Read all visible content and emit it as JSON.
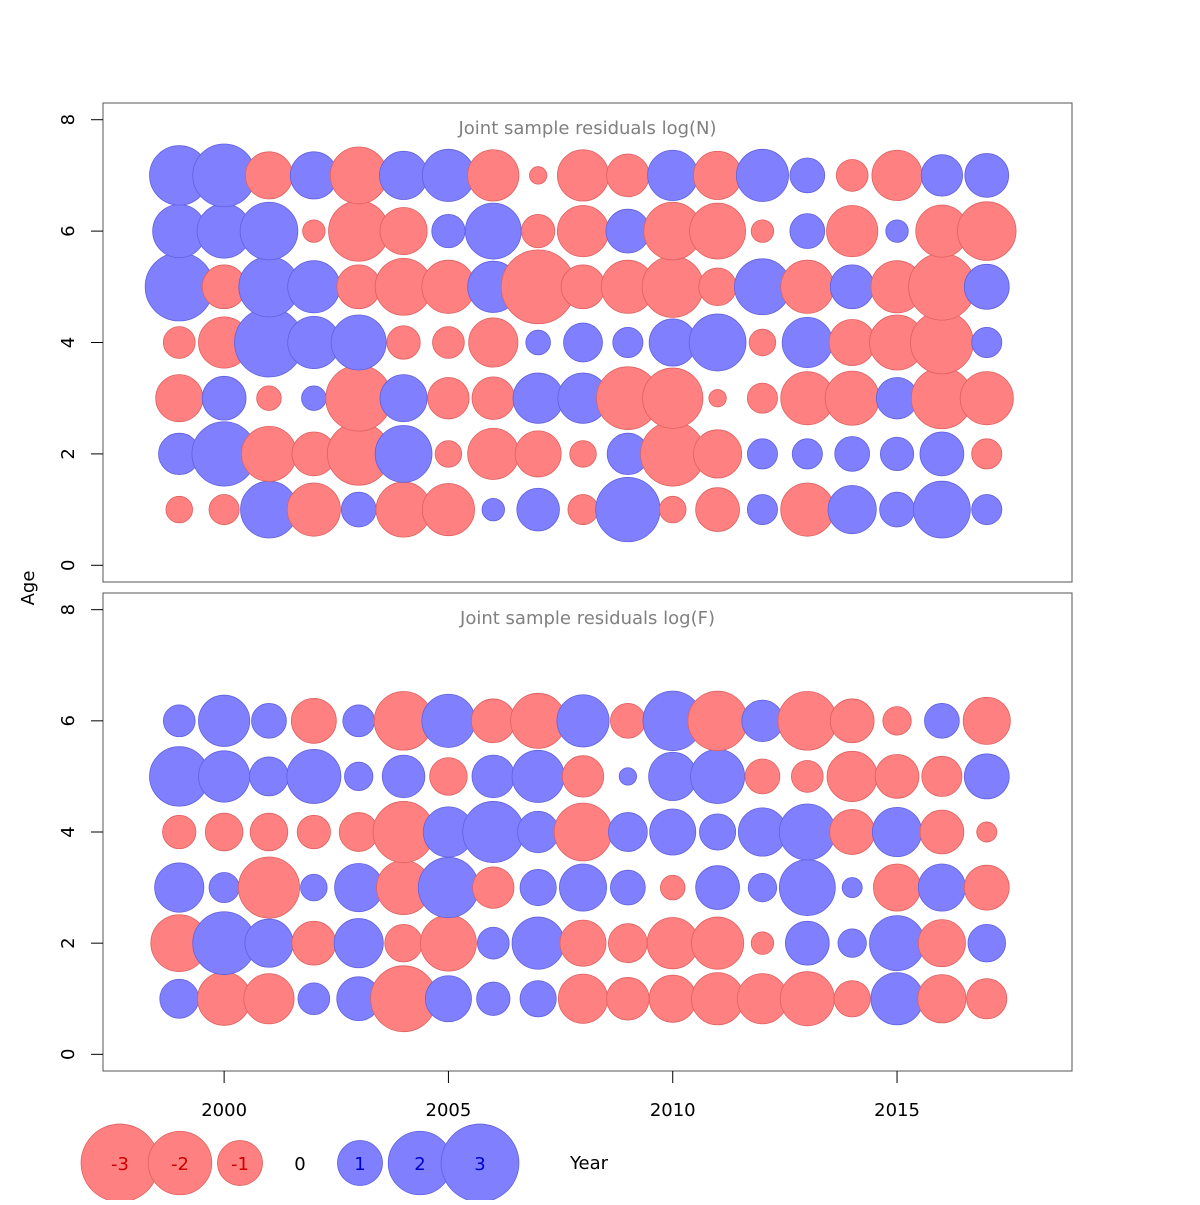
{
  "figure": {
    "ylabel": "Age",
    "xlabel": "Year"
  },
  "colors": {
    "negative": "#ff8080",
    "negative_stroke": "#e06060",
    "positive": "#8080ff",
    "positive_stroke": "#6060e0",
    "negative_legend_text": "#cc0000",
    "positive_legend_text": "#0000cc",
    "panel_border": "#555555",
    "title": "#808080"
  },
  "legend": [
    {
      "label": "-3",
      "value": -3
    },
    {
      "label": "-2",
      "value": -2
    },
    {
      "label": "-1",
      "value": -1
    },
    {
      "label": "0",
      "value": 0
    },
    {
      "label": "1",
      "value": 1
    },
    {
      "label": "2",
      "value": 2
    },
    {
      "label": "3",
      "value": 3
    }
  ],
  "chart_data": [
    {
      "type": "bubble",
      "title": "Joint sample residuals log(N)",
      "xlabel": "Year",
      "ylabel": "Age",
      "xlim": [
        1997.3,
        2018.9
      ],
      "ylim": [
        -0.3,
        8.3
      ],
      "xticks": [
        2000,
        2005,
        2010,
        2015
      ],
      "xtick_labels": [
        "2000",
        "2005",
        "2010",
        "2015"
      ],
      "show_xtick_labels": false,
      "yticks": [
        0,
        2,
        4,
        6,
        8
      ],
      "ytick_labels": [
        "0",
        "2",
        "4",
        "6",
        "8"
      ],
      "years": [
        1999,
        2000,
        2001,
        2002,
        2003,
        2004,
        2005,
        2006,
        2007,
        2008,
        2009,
        2010,
        2011,
        2012,
        2013,
        2014,
        2015,
        2016,
        2017
      ],
      "ages": [
        1,
        2,
        3,
        4,
        5,
        6,
        7
      ],
      "residuals": [
        [
          -0.35,
          -0.45,
          1.6,
          -1.4,
          0.6,
          -1.5,
          -1.35,
          0.25,
          0.9,
          -0.45,
          2.05,
          -0.35,
          -0.95,
          0.45,
          -1.4,
          1.15,
          0.6,
          1.6,
          0.45
        ],
        [
          0.85,
          2.05,
          -1.5,
          -0.95,
          -1.95,
          1.6,
          -0.35,
          -1.3,
          -1.05,
          -0.35,
          0.85,
          -2.05,
          -1.15,
          0.45,
          0.45,
          0.6,
          0.55,
          0.95,
          -0.45
        ],
        [
          -1.1,
          0.95,
          -0.3,
          0.3,
          -2.15,
          1.1,
          -0.85,
          -0.9,
          1.25,
          1.25,
          -1.95,
          -1.8,
          -0.15,
          -0.45,
          -1.4,
          -1.45,
          0.85,
          -1.85,
          -1.4
        ],
        [
          -0.5,
          -1.3,
          2.35,
          1.35,
          1.5,
          -0.55,
          -0.5,
          -1.2,
          0.3,
          0.75,
          0.45,
          1.1,
          1.6,
          -0.35,
          1.25,
          -1.05,
          -1.5,
          -1.95,
          0.45
        ],
        [
          2.3,
          -0.95,
          1.8,
          1.35,
          -0.95,
          -1.6,
          -1.4,
          1.3,
          -2.7,
          -0.95,
          -1.4,
          -1.85,
          -0.7,
          1.55,
          -1.4,
          0.95,
          -1.35,
          -2.2,
          1.0
        ],
        [
          1.4,
          1.45,
          1.65,
          -0.25,
          -1.8,
          -1.1,
          0.55,
          1.55,
          -0.55,
          -1.3,
          0.95,
          -1.65,
          -1.55,
          -0.25,
          0.6,
          -1.3,
          0.25,
          -1.35,
          -1.7
        ],
        [
          1.75,
          1.95,
          -1.1,
          1.1,
          -1.6,
          1.15,
          1.35,
          -1.3,
          -0.15,
          -1.3,
          -0.9,
          1.25,
          -1.15,
          1.35,
          0.6,
          -0.5,
          -1.25,
          0.85,
          0.95
        ]
      ]
    },
    {
      "type": "bubble",
      "title": "Joint sample residuals log(F)",
      "xlabel": "Year",
      "ylabel": "Age",
      "xlim": [
        1997.3,
        2018.9
      ],
      "ylim": [
        -0.3,
        8.3
      ],
      "xticks": [
        2000,
        2005,
        2010,
        2015
      ],
      "xtick_labels": [
        "2000",
        "2005",
        "2010",
        "2015"
      ],
      "show_xtick_labels": true,
      "yticks": [
        0,
        2,
        4,
        6,
        8
      ],
      "ytick_labels": [
        "0",
        "2",
        "4",
        "6",
        "8"
      ],
      "years": [
        1999,
        2000,
        2001,
        2002,
        2003,
        2004,
        2005,
        2006,
        2007,
        2008,
        2009,
        2010,
        2011,
        2012,
        2013,
        2014,
        2015,
        2016,
        2017
      ],
      "ages": [
        1,
        2,
        3,
        4,
        5,
        6
      ],
      "residuals": [
        [
          0.75,
          -1.4,
          -1.25,
          0.5,
          0.95,
          -2.15,
          1.05,
          0.55,
          0.65,
          -1.2,
          -0.9,
          -1.1,
          -1.35,
          -1.25,
          -1.45,
          -0.65,
          1.35,
          -1.15,
          -0.8
        ],
        [
          -1.6,
          1.95,
          1.15,
          -0.95,
          1.2,
          -0.7,
          -1.55,
          0.5,
          1.35,
          -1.05,
          -0.75,
          -1.3,
          -1.35,
          -0.25,
          0.95,
          0.4,
          1.5,
          -1.1,
          0.7
        ],
        [
          1.2,
          0.45,
          -1.85,
          0.35,
          1.15,
          -1.45,
          1.8,
          -0.85,
          0.65,
          1.1,
          0.6,
          -0.3,
          0.95,
          0.4,
          1.55,
          0.2,
          -1.1,
          1.1,
          -1.0
        ],
        [
          -0.55,
          -0.7,
          -0.7,
          -0.55,
          -0.75,
          -1.85,
          1.25,
          1.85,
          0.85,
          -1.65,
          0.75,
          1.05,
          0.65,
          1.15,
          1.55,
          -1.0,
          1.2,
          -0.95,
          -0.2
        ],
        [
          1.75,
          1.3,
          0.75,
          1.45,
          0.4,
          0.9,
          -0.7,
          0.9,
          1.35,
          -0.85,
          0.15,
          1.15,
          1.45,
          -0.6,
          -0.5,
          -1.25,
          -0.95,
          -0.8,
          1.0
        ],
        [
          0.5,
          1.3,
          0.6,
          -1.0,
          0.5,
          -1.7,
          1.4,
          -0.95,
          -1.5,
          1.35,
          -0.6,
          1.75,
          -1.75,
          0.85,
          -1.7,
          -0.95,
          -0.4,
          0.6,
          -1.1
        ]
      ]
    }
  ]
}
